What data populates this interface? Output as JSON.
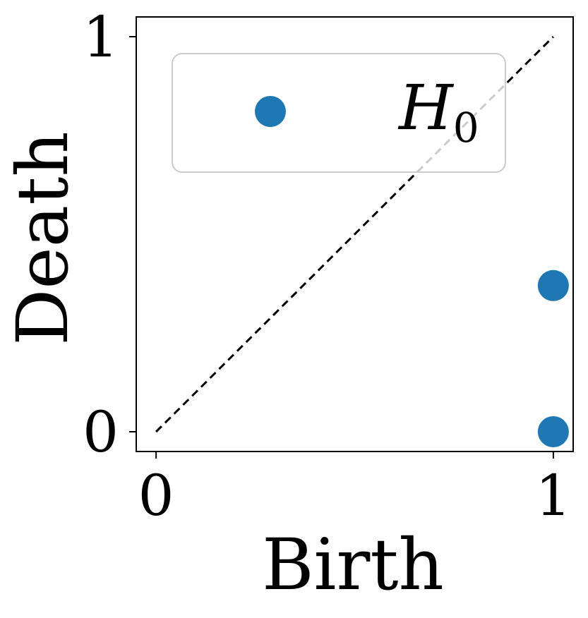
{
  "chart_data": {
    "type": "scatter",
    "title": "",
    "xlabel": "Birth",
    "ylabel": "Death",
    "xlim": [
      -0.05,
      1.05
    ],
    "ylim": [
      -0.05,
      1.05
    ],
    "x_ticks": [
      {
        "value": 0,
        "label": "0"
      },
      {
        "value": 1,
        "label": "1"
      }
    ],
    "y_ticks": [
      {
        "value": 0,
        "label": "0"
      },
      {
        "value": 1,
        "label": "1"
      }
    ],
    "diagonal": {
      "from": [
        0,
        0
      ],
      "to": [
        1,
        1
      ],
      "style": "dashed",
      "color": "#000000"
    },
    "series": [
      {
        "name": "H",
        "name_subscript": "0",
        "color": "#1f77b4",
        "points": [
          {
            "x": 1,
            "y": 0.37
          },
          {
            "x": 1,
            "y": 0.0
          }
        ]
      }
    ],
    "legend": {
      "placement": "upper-left"
    },
    "grid": false
  }
}
